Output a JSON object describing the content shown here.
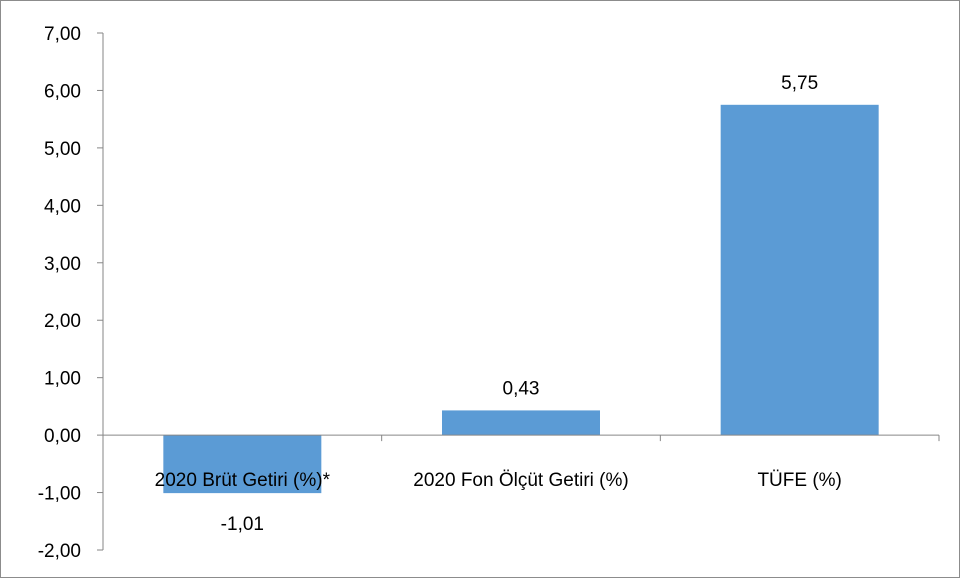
{
  "chart_data": {
    "type": "bar",
    "categories": [
      "2020 Brüt Getiri (%)*",
      "2020 Fon Ölçüt Getiri (%)",
      "TÜFE (%)"
    ],
    "values": [
      -1.01,
      0.43,
      5.75
    ],
    "data_labels": [
      "-1,01",
      "0,43",
      "5,75"
    ],
    "y_ticks": [
      "7,00",
      "6,00",
      "5,00",
      "4,00",
      "3,00",
      "2,00",
      "1,00",
      "0,00",
      "-1,00",
      "-2,00"
    ],
    "ylim": [
      -2,
      7
    ],
    "grid": false,
    "legend": "none",
    "bar_color": "#5b9bd5",
    "axis_color": "#868686"
  }
}
